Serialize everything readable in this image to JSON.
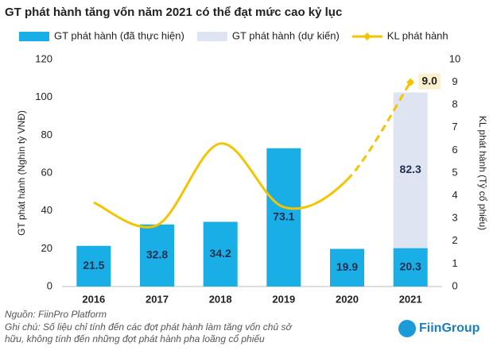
{
  "chart_data": {
    "type": "bar-line",
    "title": "GT phát hành tăng vốn năm 2021 có thể đạt mức cao kỷ lục",
    "categories": [
      "2016",
      "2017",
      "2018",
      "2019",
      "2020",
      "2021"
    ],
    "series": [
      {
        "name": "GT phát hành (đã thực hiện)",
        "type": "bar",
        "color": "#19aee6",
        "values": [
          21.5,
          32.8,
          34.2,
          73.1,
          19.9,
          20.3
        ]
      },
      {
        "name": "GT phát hành (dự kiến)",
        "type": "bar",
        "color": "#dfe4f2",
        "values": [
          null,
          null,
          null,
          null,
          null,
          82.3
        ]
      },
      {
        "name": "KL phát hành",
        "type": "line",
        "axis": "y2",
        "color": "#f5c400",
        "values": [
          3.7,
          2.7,
          6.3,
          3.5,
          4.7,
          9
        ],
        "value_labels": [
          null,
          null,
          null,
          null,
          null,
          "9.0"
        ],
        "dashed_segments": [
          4
        ]
      }
    ],
    "stacked": true,
    "ylabel": "GT phát hành (Nghìn tỷ VNĐ)",
    "y2label": "KL phát hành (Tỷ cổ phiếu)",
    "ylim": [
      0,
      120
    ],
    "yticks": [
      0,
      20,
      40,
      60,
      80,
      100,
      120
    ],
    "y2lim": [
      0,
      10
    ],
    "y2ticks": [
      0,
      1,
      2,
      3,
      4,
      5,
      6,
      7,
      8,
      9,
      10
    ],
    "grid": false
  },
  "footer": {
    "source": "Nguồn: FiinPro Platform",
    "note_lines": [
      "Ghi chú: Số liệu chỉ tính đến các đợt phát hành làm tăng vốn chủ sở",
      "hữu, không tính đến những đợt phát hành pha loãng cổ phiếu"
    ],
    "logo": "FiinGroup"
  }
}
